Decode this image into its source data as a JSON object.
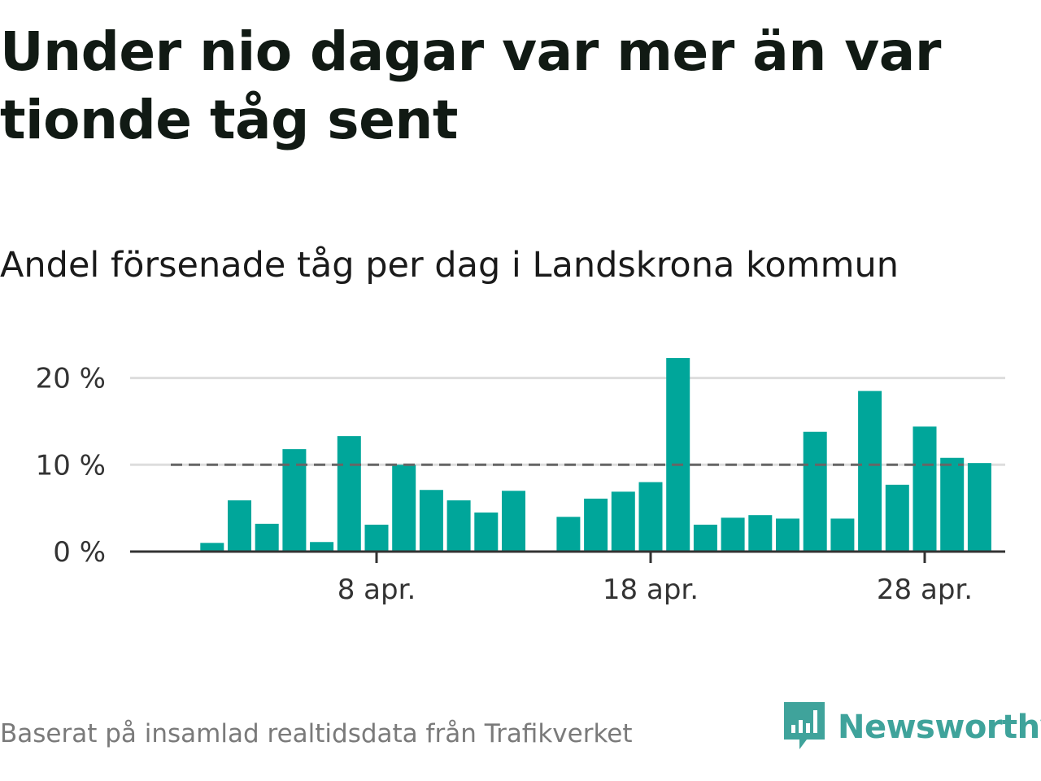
{
  "headline": "Under nio dagar var mer än var tionde tåg sent",
  "subtitle": "Andel försenade tåg per dag i Landskrona kommun",
  "source": "Baserat på insamlad realtidsdata från Trafikverket",
  "brand": {
    "name": "Newsworthy",
    "icon": "newsworthy-logo-icon",
    "color": "#3fa39b"
  },
  "colors": {
    "bar": "#00a69a",
    "reference_line": "#666666",
    "grid": "#dddddd",
    "axis": "#333333"
  },
  "chart_data": {
    "type": "bar",
    "x_unit": "day of April",
    "x": [
      2,
      3,
      4,
      5,
      6,
      7,
      8,
      9,
      10,
      11,
      12,
      13,
      15,
      16,
      17,
      18,
      19,
      20,
      21,
      22,
      23,
      24,
      25,
      26,
      27,
      28,
      29,
      30
    ],
    "values": [
      1.0,
      5.9,
      3.2,
      11.8,
      1.1,
      13.3,
      3.1,
      10.0,
      7.1,
      5.9,
      4.5,
      7.0,
      4.0,
      6.1,
      6.9,
      8.0,
      22.3,
      3.1,
      3.9,
      4.2,
      3.8,
      13.8,
      3.8,
      18.5,
      7.7,
      14.4,
      10.8,
      10.2
    ],
    "y_ticks": [
      {
        "value": 0,
        "label": "0 %"
      },
      {
        "value": 10,
        "label": "10 %"
      },
      {
        "value": 20,
        "label": "20 %"
      }
    ],
    "x_ticks": [
      {
        "value": 8,
        "label": "8 apr."
      },
      {
        "value": 18,
        "label": "18 apr."
      },
      {
        "value": 28,
        "label": "28 apr."
      }
    ],
    "reference_line": 10,
    "ylim": [
      0,
      23
    ],
    "grid": true
  }
}
